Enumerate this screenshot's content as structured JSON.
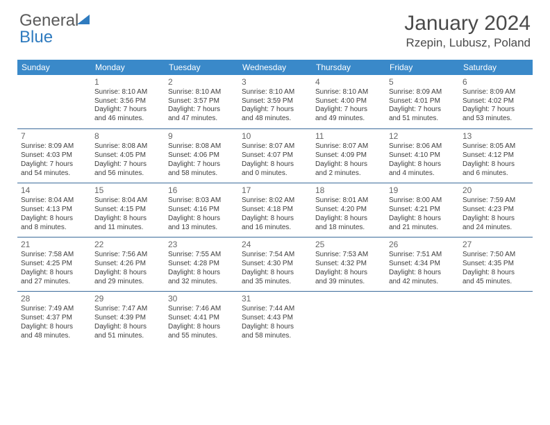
{
  "logo": {
    "gray": "General",
    "blue": "Blue"
  },
  "title": "January 2024",
  "location": "Rzepin, Lubusz, Poland",
  "headers": [
    "Sunday",
    "Monday",
    "Tuesday",
    "Wednesday",
    "Thursday",
    "Friday",
    "Saturday"
  ],
  "header_bg": "#3a89c9",
  "header_fg": "#ffffff",
  "rule_color": "#3a6a9a",
  "weeks": [
    [
      null,
      {
        "n": "1",
        "sr": "8:10 AM",
        "ss": "3:56 PM",
        "dl": "7 hours and 46 minutes."
      },
      {
        "n": "2",
        "sr": "8:10 AM",
        "ss": "3:57 PM",
        "dl": "7 hours and 47 minutes."
      },
      {
        "n": "3",
        "sr": "8:10 AM",
        "ss": "3:59 PM",
        "dl": "7 hours and 48 minutes."
      },
      {
        "n": "4",
        "sr": "8:10 AM",
        "ss": "4:00 PM",
        "dl": "7 hours and 49 minutes."
      },
      {
        "n": "5",
        "sr": "8:09 AM",
        "ss": "4:01 PM",
        "dl": "7 hours and 51 minutes."
      },
      {
        "n": "6",
        "sr": "8:09 AM",
        "ss": "4:02 PM",
        "dl": "7 hours and 53 minutes."
      }
    ],
    [
      {
        "n": "7",
        "sr": "8:09 AM",
        "ss": "4:03 PM",
        "dl": "7 hours and 54 minutes."
      },
      {
        "n": "8",
        "sr": "8:08 AM",
        "ss": "4:05 PM",
        "dl": "7 hours and 56 minutes."
      },
      {
        "n": "9",
        "sr": "8:08 AM",
        "ss": "4:06 PM",
        "dl": "7 hours and 58 minutes."
      },
      {
        "n": "10",
        "sr": "8:07 AM",
        "ss": "4:07 PM",
        "dl": "8 hours and 0 minutes."
      },
      {
        "n": "11",
        "sr": "8:07 AM",
        "ss": "4:09 PM",
        "dl": "8 hours and 2 minutes."
      },
      {
        "n": "12",
        "sr": "8:06 AM",
        "ss": "4:10 PM",
        "dl": "8 hours and 4 minutes."
      },
      {
        "n": "13",
        "sr": "8:05 AM",
        "ss": "4:12 PM",
        "dl": "8 hours and 6 minutes."
      }
    ],
    [
      {
        "n": "14",
        "sr": "8:04 AM",
        "ss": "4:13 PM",
        "dl": "8 hours and 8 minutes."
      },
      {
        "n": "15",
        "sr": "8:04 AM",
        "ss": "4:15 PM",
        "dl": "8 hours and 11 minutes."
      },
      {
        "n": "16",
        "sr": "8:03 AM",
        "ss": "4:16 PM",
        "dl": "8 hours and 13 minutes."
      },
      {
        "n": "17",
        "sr": "8:02 AM",
        "ss": "4:18 PM",
        "dl": "8 hours and 16 minutes."
      },
      {
        "n": "18",
        "sr": "8:01 AM",
        "ss": "4:20 PM",
        "dl": "8 hours and 18 minutes."
      },
      {
        "n": "19",
        "sr": "8:00 AM",
        "ss": "4:21 PM",
        "dl": "8 hours and 21 minutes."
      },
      {
        "n": "20",
        "sr": "7:59 AM",
        "ss": "4:23 PM",
        "dl": "8 hours and 24 minutes."
      }
    ],
    [
      {
        "n": "21",
        "sr": "7:58 AM",
        "ss": "4:25 PM",
        "dl": "8 hours and 27 minutes."
      },
      {
        "n": "22",
        "sr": "7:56 AM",
        "ss": "4:26 PM",
        "dl": "8 hours and 29 minutes."
      },
      {
        "n": "23",
        "sr": "7:55 AM",
        "ss": "4:28 PM",
        "dl": "8 hours and 32 minutes."
      },
      {
        "n": "24",
        "sr": "7:54 AM",
        "ss": "4:30 PM",
        "dl": "8 hours and 35 minutes."
      },
      {
        "n": "25",
        "sr": "7:53 AM",
        "ss": "4:32 PM",
        "dl": "8 hours and 39 minutes."
      },
      {
        "n": "26",
        "sr": "7:51 AM",
        "ss": "4:34 PM",
        "dl": "8 hours and 42 minutes."
      },
      {
        "n": "27",
        "sr": "7:50 AM",
        "ss": "4:35 PM",
        "dl": "8 hours and 45 minutes."
      }
    ],
    [
      {
        "n": "28",
        "sr": "7:49 AM",
        "ss": "4:37 PM",
        "dl": "8 hours and 48 minutes."
      },
      {
        "n": "29",
        "sr": "7:47 AM",
        "ss": "4:39 PM",
        "dl": "8 hours and 51 minutes."
      },
      {
        "n": "30",
        "sr": "7:46 AM",
        "ss": "4:41 PM",
        "dl": "8 hours and 55 minutes."
      },
      {
        "n": "31",
        "sr": "7:44 AM",
        "ss": "4:43 PM",
        "dl": "8 hours and 58 minutes."
      },
      null,
      null,
      null
    ]
  ],
  "labels": {
    "sunrise": "Sunrise:",
    "sunset": "Sunset:",
    "daylight": "Daylight:"
  }
}
